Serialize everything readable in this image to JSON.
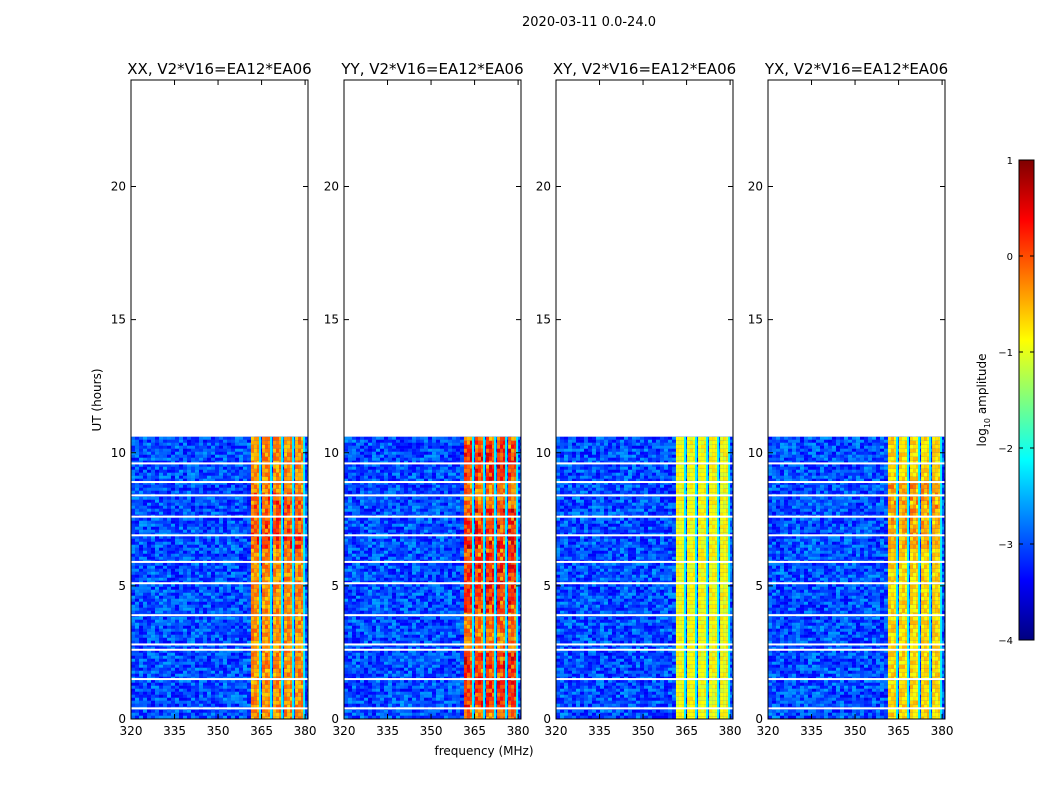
{
  "figure": {
    "suptitle": "2020-03-11 0.0-24.0",
    "ylabel": "UT (hours)",
    "xlabel": "frequency (MHz)"
  },
  "colorbar": {
    "label_prefix": "log",
    "label_sub": "10",
    "label_suffix": " amplitude",
    "min": -4,
    "max": 1,
    "ticks": [
      {
        "value": 1,
        "label": "1"
      },
      {
        "value": 0,
        "label": "0"
      },
      {
        "value": -1,
        "label": "−1"
      },
      {
        "value": -2,
        "label": "−2"
      },
      {
        "value": -3,
        "label": "−3"
      },
      {
        "value": -4,
        "label": "−4"
      }
    ],
    "colors": [
      "#00007f",
      "#0000ff",
      "#007fff",
      "#00ffff",
      "#7fff7f",
      "#ffff00",
      "#ff7f00",
      "#ff0000",
      "#7f0000"
    ]
  },
  "chart_data": [
    {
      "type": "heatmap",
      "title": "XX, V2*V16=EA12*EA06",
      "xlabel": "frequency (MHz)",
      "ylabel": "UT (hours)",
      "xlim": [
        320,
        381
      ],
      "ylim": [
        0,
        24
      ],
      "xticks": [
        {
          "value": 320,
          "label": "320"
        },
        {
          "value": 335,
          "label": "335"
        },
        {
          "value": 350,
          "label": "350"
        },
        {
          "value": 365,
          "label": "365"
        },
        {
          "value": 380,
          "label": "380"
        }
      ],
      "yticks": [
        {
          "value": 0,
          "label": "0"
        },
        {
          "value": 5,
          "label": "5"
        },
        {
          "value": 10,
          "label": "10"
        },
        {
          "value": 15,
          "label": "15"
        },
        {
          "value": 20,
          "label": "20"
        }
      ],
      "data_time_range": [
        0,
        10.6
      ],
      "background_log_amplitude": -3,
      "bright_band_mhz": [
        361,
        380
      ],
      "bright_band_log_amplitude_range": [
        -1,
        0.3
      ],
      "bright_band_peak_hours": [
        [
          6.5,
          8.5
        ]
      ],
      "flagged_gap_hours": [
        0.4,
        1.5,
        2.6,
        2.8,
        3.9,
        5.1,
        5.9,
        6.9,
        7.6,
        8.4,
        8.9,
        9.6
      ]
    },
    {
      "type": "heatmap",
      "title": "YY, V2*V16=EA12*EA06",
      "xlabel": "frequency (MHz)",
      "ylabel": "UT (hours)",
      "xlim": [
        320,
        381
      ],
      "ylim": [
        0,
        24
      ],
      "xticks": [
        {
          "value": 320,
          "label": "320"
        },
        {
          "value": 335,
          "label": "335"
        },
        {
          "value": 350,
          "label": "350"
        },
        {
          "value": 365,
          "label": "365"
        },
        {
          "value": 380,
          "label": "380"
        }
      ],
      "yticks": [
        {
          "value": 0,
          "label": "0"
        },
        {
          "value": 5,
          "label": "5"
        },
        {
          "value": 10,
          "label": "10"
        },
        {
          "value": 15,
          "label": "15"
        },
        {
          "value": 20,
          "label": "20"
        }
      ],
      "data_time_range": [
        0,
        10.6
      ],
      "background_log_amplitude": -3,
      "bright_band_mhz": [
        361,
        380
      ],
      "bright_band_log_amplitude_range": [
        -1,
        0.5
      ],
      "bright_band_peak_hours": [
        [
          0.5,
          2.5
        ],
        [
          4.0,
          8.0
        ],
        [
          9.0,
          10.5
        ]
      ],
      "flagged_gap_hours": [
        0.4,
        1.5,
        2.6,
        2.8,
        3.9,
        5.1,
        5.9,
        6.9,
        7.6,
        8.4,
        8.9,
        9.6
      ]
    },
    {
      "type": "heatmap",
      "title": "XY, V2*V16=EA12*EA06",
      "xlabel": "frequency (MHz)",
      "ylabel": "UT (hours)",
      "xlim": [
        320,
        381
      ],
      "ylim": [
        0,
        24
      ],
      "xticks": [
        {
          "value": 320,
          "label": "320"
        },
        {
          "value": 335,
          "label": "335"
        },
        {
          "value": 350,
          "label": "350"
        },
        {
          "value": 365,
          "label": "365"
        },
        {
          "value": 380,
          "label": "380"
        }
      ],
      "yticks": [
        {
          "value": 0,
          "label": "0"
        },
        {
          "value": 5,
          "label": "5"
        },
        {
          "value": 10,
          "label": "10"
        },
        {
          "value": 15,
          "label": "15"
        },
        {
          "value": 20,
          "label": "20"
        }
      ],
      "data_time_range": [
        0,
        10.6
      ],
      "background_log_amplitude": -3,
      "bright_band_mhz": [
        361,
        380
      ],
      "bright_band_log_amplitude_range": [
        -1.3,
        -0.5
      ],
      "bright_band_peak_hours": [],
      "flagged_gap_hours": [
        0.4,
        1.5,
        2.6,
        2.8,
        3.9,
        5.1,
        5.9,
        6.9,
        7.6,
        8.4,
        8.9,
        9.6
      ]
    },
    {
      "type": "heatmap",
      "title": "YX, V2*V16=EA12*EA06",
      "xlabel": "frequency (MHz)",
      "ylabel": "UT (hours)",
      "xlim": [
        320,
        381
      ],
      "ylim": [
        0,
        24
      ],
      "xticks": [
        {
          "value": 320,
          "label": "320"
        },
        {
          "value": 335,
          "label": "335"
        },
        {
          "value": 350,
          "label": "350"
        },
        {
          "value": 365,
          "label": "365"
        },
        {
          "value": 380,
          "label": "380"
        }
      ],
      "yticks": [
        {
          "value": 0,
          "label": "0"
        },
        {
          "value": 5,
          "label": "5"
        },
        {
          "value": 10,
          "label": "10"
        },
        {
          "value": 15,
          "label": "15"
        },
        {
          "value": 20,
          "label": "20"
        }
      ],
      "data_time_range": [
        0,
        10.6
      ],
      "background_log_amplitude": -3,
      "bright_band_mhz": [
        361,
        380
      ],
      "bright_band_log_amplitude_range": [
        -1.2,
        -0.2
      ],
      "bright_band_peak_hours": [
        [
          6.5,
          9.0
        ]
      ],
      "flagged_gap_hours": [
        0.4,
        1.5,
        2.6,
        2.8,
        3.9,
        5.1,
        5.9,
        6.9,
        7.6,
        8.4,
        8.9,
        9.6
      ]
    }
  ]
}
